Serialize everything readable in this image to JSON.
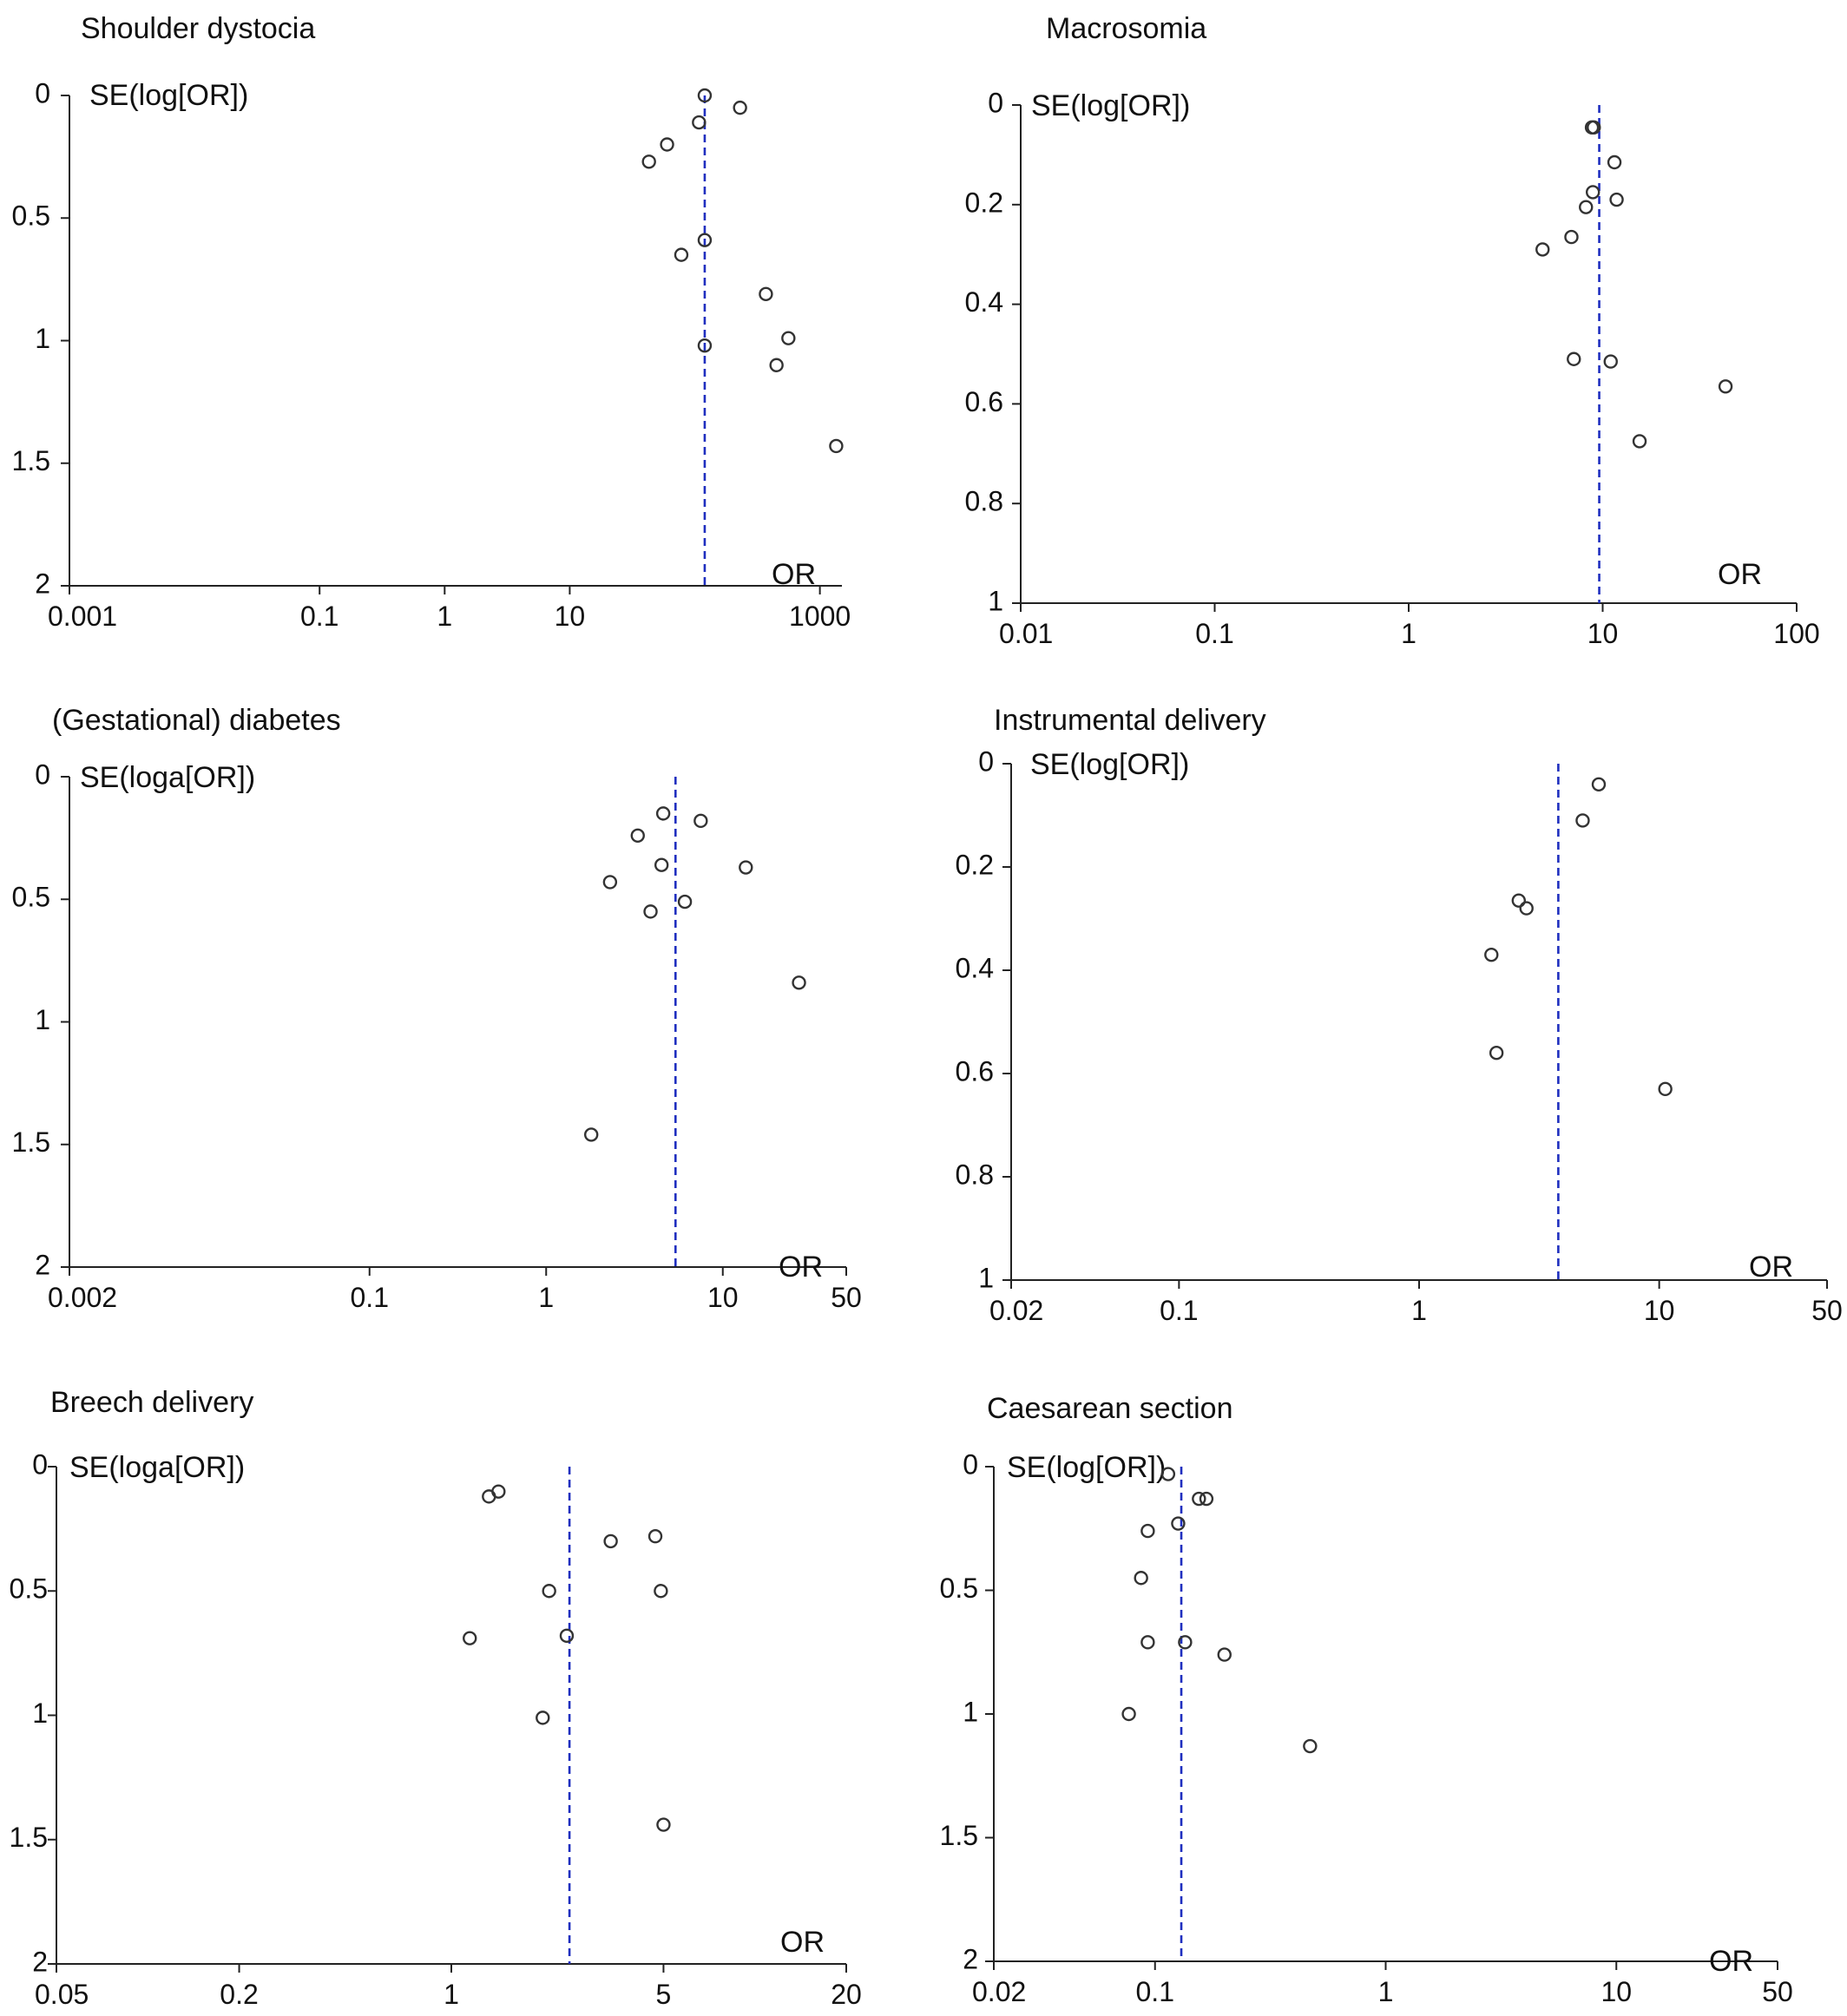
{
  "chart_data": [
    {
      "type": "scatter",
      "title": "Shoulder dystocia",
      "ylabel": "SE(log[OR])",
      "xlabel": "OR",
      "xscale": "log",
      "xlim": [
        0.001,
        1500
      ],
      "ylim": [
        0,
        2
      ],
      "yreversed": true,
      "xticks": [
        0.001,
        0.1,
        1,
        10,
        1000
      ],
      "xtick_labels": [
        "0.001",
        "0.1",
        "1",
        "10",
        "1000"
      ],
      "yticks": [
        0,
        0.5,
        1,
        1.5,
        2
      ],
      "ytick_labels": [
        "0",
        "0.5",
        "1",
        "1.5",
        "2"
      ],
      "pooled_or": 120,
      "points": [
        {
          "or": 120,
          "se": 0.0
        },
        {
          "or": 230,
          "se": 0.05
        },
        {
          "or": 108,
          "se": 0.11
        },
        {
          "or": 60,
          "se": 0.2
        },
        {
          "or": 43,
          "se": 0.27
        },
        {
          "or": 120,
          "se": 0.59
        },
        {
          "or": 78,
          "se": 0.65
        },
        {
          "or": 370,
          "se": 0.81
        },
        {
          "or": 560,
          "se": 0.99
        },
        {
          "or": 120,
          "se": 1.02
        },
        {
          "or": 450,
          "se": 1.1
        },
        {
          "or": 1350,
          "se": 1.43
        }
      ]
    },
    {
      "type": "scatter",
      "title": "Macrosomia",
      "ylabel": "SE(log[OR])",
      "xlabel": "OR",
      "xscale": "log",
      "xlim": [
        0.01,
        100
      ],
      "ylim": [
        0,
        1
      ],
      "yreversed": true,
      "xticks": [
        0.01,
        0.1,
        1,
        10,
        100
      ],
      "xtick_labels": [
        "0.01",
        "0.1",
        "1",
        "10",
        "100"
      ],
      "yticks": [
        0,
        0.2,
        0.4,
        0.6,
        0.8,
        1
      ],
      "ytick_labels": [
        "0",
        "0.2",
        "0.4",
        "0.6",
        "0.8",
        "1"
      ],
      "pooled_or": 9.6,
      "points": [
        {
          "or": 8.8,
          "se": 0.045
        },
        {
          "or": 9.0,
          "se": 0.045
        },
        {
          "or": 11.5,
          "se": 0.115
        },
        {
          "or": 8.9,
          "se": 0.175
        },
        {
          "or": 11.8,
          "se": 0.19
        },
        {
          "or": 8.2,
          "se": 0.205
        },
        {
          "or": 6.9,
          "se": 0.265
        },
        {
          "or": 4.9,
          "se": 0.29
        },
        {
          "or": 7.1,
          "se": 0.51
        },
        {
          "or": 11.0,
          "se": 0.515
        },
        {
          "or": 43,
          "se": 0.565
        },
        {
          "or": 15.5,
          "se": 0.675
        }
      ]
    },
    {
      "type": "scatter",
      "title": "(Gestational) diabetes",
      "ylabel": "SE(loga[OR])",
      "xlabel": "OR",
      "xscale": "log",
      "xlim": [
        0.002,
        50
      ],
      "ylim": [
        0,
        2
      ],
      "yreversed": true,
      "xticks": [
        0.002,
        0.1,
        1,
        10,
        50
      ],
      "xtick_labels": [
        "0.002",
        "0.1",
        "1",
        "10",
        "50"
      ],
      "yticks": [
        0,
        0.5,
        1,
        1.5,
        2
      ],
      "ytick_labels": [
        "0",
        "0.5",
        "1",
        "1.5",
        "2"
      ],
      "pooled_or": 5.4,
      "points": [
        {
          "or": 4.6,
          "se": 0.15
        },
        {
          "or": 7.5,
          "se": 0.18
        },
        {
          "or": 3.3,
          "se": 0.24
        },
        {
          "or": 4.5,
          "se": 0.36
        },
        {
          "or": 13.5,
          "se": 0.37
        },
        {
          "or": 2.3,
          "se": 0.43
        },
        {
          "or": 6.1,
          "se": 0.51
        },
        {
          "or": 3.9,
          "se": 0.55
        },
        {
          "or": 27,
          "se": 0.84
        },
        {
          "or": 1.8,
          "se": 1.46
        }
      ]
    },
    {
      "type": "scatter",
      "title": "Instrumental delivery",
      "ylabel": "SE(log[OR])",
      "xlabel": "OR",
      "xscale": "log",
      "xlim": [
        0.02,
        50
      ],
      "ylim": [
        0,
        1
      ],
      "yreversed": true,
      "xticks": [
        0.02,
        0.1,
        1,
        10,
        50
      ],
      "xtick_labels": [
        "0.02",
        "0.1",
        "1",
        "10",
        "50"
      ],
      "yticks": [
        0,
        0.2,
        0.4,
        0.6,
        0.8,
        1
      ],
      "ytick_labels": [
        "0",
        "0.2",
        "0.4",
        "0.6",
        "0.8",
        "1"
      ],
      "pooled_or": 3.8,
      "points": [
        {
          "or": 5.6,
          "se": 0.04
        },
        {
          "or": 4.8,
          "se": 0.11
        },
        {
          "or": 2.6,
          "se": 0.265
        },
        {
          "or": 2.8,
          "se": 0.28
        },
        {
          "or": 2.0,
          "se": 0.37
        },
        {
          "or": 2.1,
          "se": 0.56
        },
        {
          "or": 10.6,
          "se": 0.63
        }
      ]
    },
    {
      "type": "scatter",
      "title": "Breech delivery",
      "ylabel": "SE(loga[OR])",
      "xlabel": "OR",
      "xscale": "log",
      "xlim": [
        0.05,
        20
      ],
      "ylim": [
        0,
        2
      ],
      "yreversed": true,
      "xticks": [
        0.05,
        0.2,
        1,
        5,
        20
      ],
      "xtick_labels": [
        "0.05",
        "0.2",
        "1",
        "5",
        "20"
      ],
      "yticks": [
        0,
        0.5,
        1,
        1.5,
        2
      ],
      "ytick_labels": [
        "0",
        "0.5",
        "1",
        "1.5",
        "2"
      ],
      "pooled_or": 2.45,
      "points": [
        {
          "or": 1.43,
          "se": 0.1
        },
        {
          "or": 1.33,
          "se": 0.12
        },
        {
          "or": 3.35,
          "se": 0.3
        },
        {
          "or": 4.7,
          "se": 0.28
        },
        {
          "or": 2.1,
          "se": 0.5
        },
        {
          "or": 4.9,
          "se": 0.5
        },
        {
          "or": 1.15,
          "se": 0.69
        },
        {
          "or": 2.4,
          "se": 0.68
        },
        {
          "or": 2.0,
          "se": 1.01
        },
        {
          "or": 5.0,
          "se": 1.44
        }
      ]
    },
    {
      "type": "scatter",
      "title": "Caesarean section",
      "ylabel": "SE(log[OR])",
      "xlabel": "OR",
      "xscale": "log",
      "xlim": [
        0.02,
        50
      ],
      "ylim": [
        0,
        2
      ],
      "yreversed": true,
      "xticks": [
        0.02,
        0.1,
        1,
        10,
        50
      ],
      "xtick_labels": [
        "0.02",
        "0.1",
        "1",
        "10",
        "50"
      ],
      "yticks": [
        0,
        0.5,
        1,
        1.5,
        2
      ],
      "ytick_labels": [
        "0",
        "0.5",
        "1",
        "1.5",
        "2"
      ],
      "pooled_or": 0.13,
      "points": [
        {
          "or": 0.114,
          "se": 0.03
        },
        {
          "or": 0.155,
          "se": 0.13
        },
        {
          "or": 0.167,
          "se": 0.13
        },
        {
          "or": 0.126,
          "se": 0.23
        },
        {
          "or": 0.093,
          "se": 0.26
        },
        {
          "or": 0.087,
          "se": 0.45
        },
        {
          "or": 0.093,
          "se": 0.71
        },
        {
          "or": 0.135,
          "se": 0.71
        },
        {
          "or": 0.2,
          "se": 0.76
        },
        {
          "or": 0.077,
          "se": 1.0
        },
        {
          "or": 0.47,
          "se": 1.13
        }
      ]
    }
  ]
}
